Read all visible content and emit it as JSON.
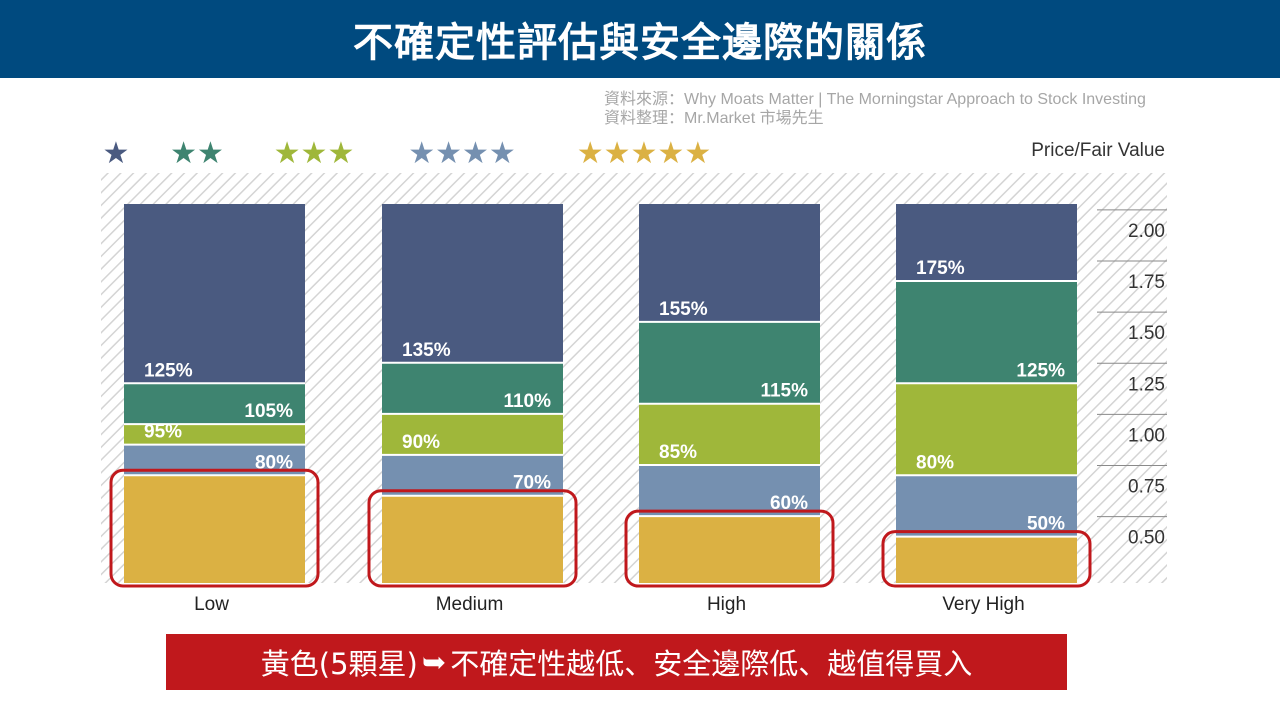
{
  "title": "不確定性評估與安全邊際的關係",
  "source": {
    "line1_label": "資料來源：",
    "line1_value": "Why Moats Matter | The Morningstar Approach to Stock Investing",
    "line2_label": "資料整理：",
    "line2_value": "Mr.Market 市場先生"
  },
  "caption": {
    "prefix": "黃色(5顆星)",
    "arrow": "➥",
    "text": "不確定性越低、安全邊際低、越值得買入"
  },
  "colors": {
    "title_bg": "#004a7f",
    "caption_bg": "#c0181c",
    "highlight_border": "#c0181c",
    "star1": "#4a5a80",
    "star2": "#3e8470",
    "star3": "#9fb73a",
    "star4": "#7590b0",
    "star5": "#dbb143"
  },
  "chart_data": {
    "type": "bar",
    "stacked": true,
    "ylabel": "Price/Fair Value",
    "y_ticks": [
      "2.00",
      "1.75",
      "1.50",
      "1.25",
      "1.00",
      "0.75",
      "0.50"
    ],
    "categories": [
      "Low",
      "Medium",
      "High",
      "Very High"
    ],
    "legend": [
      {
        "stars": 1,
        "symbol": "★",
        "color": "#4a5a80"
      },
      {
        "stars": 2,
        "symbol": "★★",
        "color": "#3e8470"
      },
      {
        "stars": 3,
        "symbol": "★★★",
        "color": "#9fb73a"
      },
      {
        "stars": 4,
        "symbol": "★★★★",
        "color": "#7590b0"
      },
      {
        "stars": 5,
        "symbol": "★★★★★",
        "color": "#dbb143"
      }
    ],
    "thresholds": [
      {
        "category": "Low",
        "bounds": [
          0.8,
          0.95,
          1.05,
          1.25
        ],
        "labels": [
          "80%",
          "95%",
          "105%",
          "125%"
        ]
      },
      {
        "category": "Medium",
        "bounds": [
          0.7,
          0.9,
          1.1,
          1.35
        ],
        "labels": [
          "70%",
          "90%",
          "110%",
          "135%"
        ]
      },
      {
        "category": "High",
        "bounds": [
          0.6,
          0.85,
          1.15,
          1.55
        ],
        "labels": [
          "60%",
          "85%",
          "115%",
          "155%"
        ]
      },
      {
        "category": "Very High",
        "bounds": [
          0.5,
          0.8,
          1.25,
          1.75
        ],
        "labels": [
          "50%",
          "80%",
          "125%",
          "175%"
        ]
      }
    ],
    "highlight": "5-star zone (bottom segment of each bar)"
  }
}
